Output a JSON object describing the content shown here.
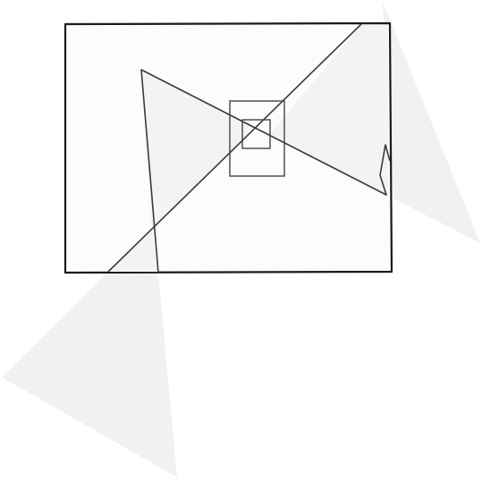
{
  "diagram": {
    "colors": {
      "background": "#ffffff",
      "frame_fill": "#fdfbfb",
      "frame_stroke": "#1a1a1a",
      "shape_fill": "#f1f1f0",
      "shape_stroke": "#3a3a3a",
      "inner_stroke": "#444444"
    },
    "shapes": [
      {
        "name": "outer-frame",
        "kind": "rectangle",
        "outlined": true,
        "filled": true
      },
      {
        "name": "upper-right-triangle",
        "kind": "triangle",
        "outlined": false,
        "filled": true
      },
      {
        "name": "lower-left-triangle",
        "kind": "triangle",
        "outlined": false,
        "filled": true
      },
      {
        "name": "bowtie-polygon",
        "kind": "polyline",
        "outlined": true,
        "filled": true
      },
      {
        "name": "diagonal-line",
        "kind": "line",
        "outlined": true,
        "filled": false
      },
      {
        "name": "center-rectangle",
        "kind": "rectangle",
        "outlined": true,
        "filled": false
      },
      {
        "name": "center-square",
        "kind": "rectangle",
        "outlined": true,
        "filled": false
      }
    ]
  }
}
